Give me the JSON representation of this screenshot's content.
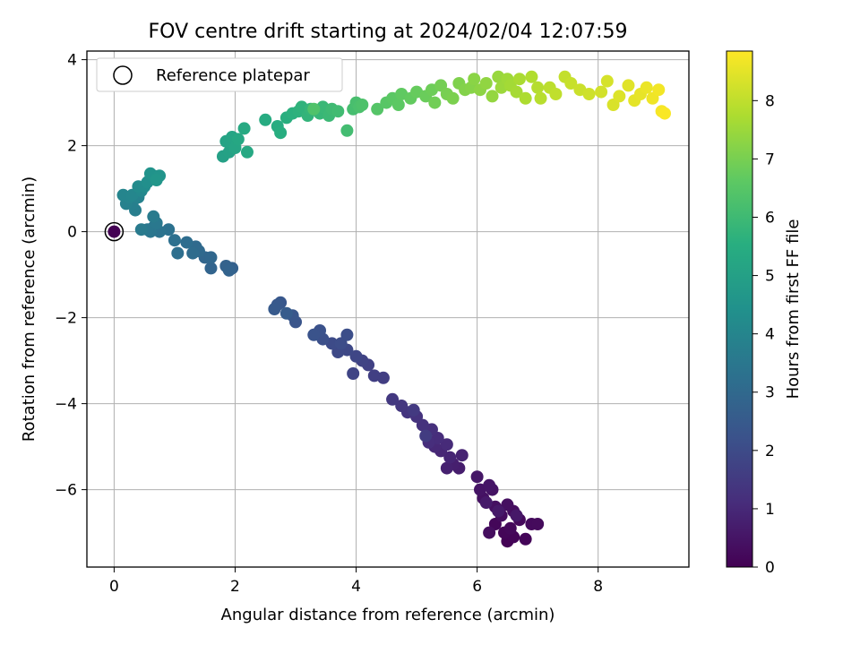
{
  "chart_data": {
    "type": "scatter",
    "title": "FOV centre drift starting at 2024/02/04 12:07:59",
    "xlabel": "Angular distance from reference (arcmin)",
    "ylabel": "Rotation from reference (arcmin)",
    "xlim": [
      -0.45,
      9.5
    ],
    "ylim": [
      -7.8,
      4.2
    ],
    "xticks": [
      0,
      2,
      4,
      6,
      8
    ],
    "xtick_labels": [
      "0",
      "2",
      "4",
      "6",
      "8"
    ],
    "yticks": [
      -6,
      -4,
      -2,
      0,
      2,
      4
    ],
    "ytick_labels": [
      "−6",
      "−4",
      "−2",
      "0",
      "2",
      "4"
    ],
    "grid": true,
    "legend": {
      "position": "top-left",
      "entries": [
        "Reference platepar"
      ]
    },
    "reference_point": {
      "x": 0,
      "y": 0
    },
    "colorbar": {
      "label": "Hours from first FF file",
      "range": [
        0,
        8.85
      ],
      "ticks": [
        0,
        1,
        2,
        3,
        4,
        5,
        6,
        7,
        8
      ],
      "tick_labels": [
        "0",
        "1",
        "2",
        "3",
        "4",
        "5",
        "6",
        "7",
        "8"
      ],
      "colormap": "viridis"
    },
    "points": [
      {
        "x": 0,
        "y": 0,
        "h": 0
      },
      {
        "x": 6.5,
        "y": -7.2,
        "h": 0.05
      },
      {
        "x": 6.6,
        "y": -7.1,
        "h": 0.08
      },
      {
        "x": 6.8,
        "y": -7.15,
        "h": 0.1
      },
      {
        "x": 6.45,
        "y": -7.0,
        "h": 0.12
      },
      {
        "x": 6.3,
        "y": -6.8,
        "h": 0.15
      },
      {
        "x": 6.55,
        "y": -6.9,
        "h": 0.18
      },
      {
        "x": 6.7,
        "y": -6.7,
        "h": 0.2
      },
      {
        "x": 6.9,
        "y": -6.8,
        "h": 0.22
      },
      {
        "x": 7.0,
        "y": -6.8,
        "h": 0.24
      },
      {
        "x": 6.4,
        "y": -6.6,
        "h": 0.27
      },
      {
        "x": 6.6,
        "y": -6.5,
        "h": 0.3
      },
      {
        "x": 6.2,
        "y": -7.0,
        "h": 0.32
      },
      {
        "x": 6.5,
        "y": -6.35,
        "h": 0.35
      },
      {
        "x": 6.3,
        "y": -6.4,
        "h": 0.38
      },
      {
        "x": 6.1,
        "y": -6.2,
        "h": 0.4
      },
      {
        "x": 6.25,
        "y": -6.0,
        "h": 0.45
      },
      {
        "x": 6.05,
        "y": -6.0,
        "h": 0.48
      },
      {
        "x": 6.2,
        "y": -5.9,
        "h": 0.5
      },
      {
        "x": 6.0,
        "y": -5.7,
        "h": 0.55
      },
      {
        "x": 6.65,
        "y": -6.6,
        "h": 0.58
      },
      {
        "x": 6.35,
        "y": -6.5,
        "h": 0.6
      },
      {
        "x": 6.15,
        "y": -6.3,
        "h": 0.62
      },
      {
        "x": 5.7,
        "y": -5.5,
        "h": 0.7
      },
      {
        "x": 5.6,
        "y": -5.4,
        "h": 0.75
      },
      {
        "x": 5.5,
        "y": -5.5,
        "h": 0.8
      },
      {
        "x": 5.75,
        "y": -5.2,
        "h": 0.85
      },
      {
        "x": 5.55,
        "y": -5.25,
        "h": 0.9
      },
      {
        "x": 5.4,
        "y": -5.1,
        "h": 0.95
      },
      {
        "x": 5.3,
        "y": -5.0,
        "h": 1.0
      },
      {
        "x": 5.5,
        "y": -4.95,
        "h": 1.05
      },
      {
        "x": 5.35,
        "y": -4.8,
        "h": 1.1
      },
      {
        "x": 5.2,
        "y": -4.9,
        "h": 1.15
      },
      {
        "x": 5.25,
        "y": -4.6,
        "h": 1.2
      },
      {
        "x": 5.1,
        "y": -4.5,
        "h": 1.25
      },
      {
        "x": 5.0,
        "y": -4.3,
        "h": 1.3
      },
      {
        "x": 4.85,
        "y": -4.2,
        "h": 1.35
      },
      {
        "x": 4.75,
        "y": -4.05,
        "h": 1.4
      },
      {
        "x": 4.6,
        "y": -3.9,
        "h": 1.45
      },
      {
        "x": 4.95,
        "y": -4.15,
        "h": 1.5
      },
      {
        "x": 5.15,
        "y": -4.75,
        "h": 1.55
      },
      {
        "x": 4.45,
        "y": -3.4,
        "h": 1.6
      },
      {
        "x": 4.3,
        "y": -3.35,
        "h": 1.65
      },
      {
        "x": 4.2,
        "y": -3.1,
        "h": 1.7
      },
      {
        "x": 4.1,
        "y": -3.0,
        "h": 1.75
      },
      {
        "x": 3.95,
        "y": -3.3,
        "h": 1.8
      },
      {
        "x": 4.0,
        "y": -2.9,
        "h": 1.85
      },
      {
        "x": 3.85,
        "y": -2.75,
        "h": 1.9
      },
      {
        "x": 3.7,
        "y": -2.8,
        "h": 1.95
      },
      {
        "x": 3.6,
        "y": -2.6,
        "h": 2.0
      },
      {
        "x": 3.75,
        "y": -2.6,
        "h": 2.05
      },
      {
        "x": 3.85,
        "y": -2.4,
        "h": 2.1
      },
      {
        "x": 3.45,
        "y": -2.5,
        "h": 2.15
      },
      {
        "x": 3.4,
        "y": -2.3,
        "h": 2.2
      },
      {
        "x": 3.3,
        "y": -2.4,
        "h": 2.25
      },
      {
        "x": 3.0,
        "y": -2.1,
        "h": 2.3
      },
      {
        "x": 2.95,
        "y": -1.95,
        "h": 2.35
      },
      {
        "x": 2.75,
        "y": -1.65,
        "h": 2.4
      },
      {
        "x": 2.7,
        "y": -1.7,
        "h": 2.45
      },
      {
        "x": 2.65,
        "y": -1.8,
        "h": 2.5
      },
      {
        "x": 2.85,
        "y": -1.9,
        "h": 2.55
      },
      {
        "x": 1.95,
        "y": -0.85,
        "h": 2.7
      },
      {
        "x": 1.85,
        "y": -0.8,
        "h": 2.75
      },
      {
        "x": 1.9,
        "y": -0.9,
        "h": 2.8
      },
      {
        "x": 1.6,
        "y": -0.85,
        "h": 2.85
      },
      {
        "x": 1.5,
        "y": -0.6,
        "h": 2.9
      },
      {
        "x": 1.6,
        "y": -0.6,
        "h": 2.95
      },
      {
        "x": 1.4,
        "y": -0.45,
        "h": 3.0
      },
      {
        "x": 1.35,
        "y": -0.35,
        "h": 3.05
      },
      {
        "x": 1.3,
        "y": -0.5,
        "h": 3.1
      },
      {
        "x": 1.2,
        "y": -0.25,
        "h": 3.15
      },
      {
        "x": 1.05,
        "y": -0.5,
        "h": 3.2
      },
      {
        "x": 1.0,
        "y": -0.2,
        "h": 3.25
      },
      {
        "x": 0.9,
        "y": 0.05,
        "h": 3.3
      },
      {
        "x": 0.75,
        "y": 0.0,
        "h": 3.35
      },
      {
        "x": 0.65,
        "y": 0.1,
        "h": 3.4
      },
      {
        "x": 0.6,
        "y": 0.0,
        "h": 3.45
      },
      {
        "x": 0.55,
        "y": 0.05,
        "h": 3.5
      },
      {
        "x": 0.7,
        "y": 0.2,
        "h": 3.55
      },
      {
        "x": 0.45,
        "y": 0.05,
        "h": 3.6
      },
      {
        "x": 0.65,
        "y": 0.35,
        "h": 3.65
      },
      {
        "x": 0.35,
        "y": 0.5,
        "h": 3.75
      },
      {
        "x": 0.3,
        "y": 0.65,
        "h": 3.8
      },
      {
        "x": 0.2,
        "y": 0.65,
        "h": 3.85
      },
      {
        "x": 0.4,
        "y": 0.8,
        "h": 3.9
      },
      {
        "x": 0.25,
        "y": 0.8,
        "h": 3.95
      },
      {
        "x": 0.15,
        "y": 0.85,
        "h": 4.0
      },
      {
        "x": 0.3,
        "y": 0.85,
        "h": 4.05
      },
      {
        "x": 0.45,
        "y": 0.95,
        "h": 4.1
      },
      {
        "x": 0.4,
        "y": 1.05,
        "h": 4.2
      },
      {
        "x": 0.5,
        "y": 1.05,
        "h": 4.25
      },
      {
        "x": 0.55,
        "y": 1.15,
        "h": 4.35
      },
      {
        "x": 0.65,
        "y": 1.3,
        "h": 4.45
      },
      {
        "x": 0.6,
        "y": 1.35,
        "h": 4.5
      },
      {
        "x": 0.75,
        "y": 1.3,
        "h": 4.55
      },
      {
        "x": 0.7,
        "y": 1.2,
        "h": 4.6
      },
      {
        "x": 1.8,
        "y": 1.75,
        "h": 5.0
      },
      {
        "x": 1.9,
        "y": 1.85,
        "h": 5.05
      },
      {
        "x": 1.85,
        "y": 2.1,
        "h": 5.1
      },
      {
        "x": 1.95,
        "y": 2.2,
        "h": 5.15
      },
      {
        "x": 2.0,
        "y": 1.95,
        "h": 5.2
      },
      {
        "x": 2.05,
        "y": 2.15,
        "h": 5.25
      },
      {
        "x": 2.2,
        "y": 1.85,
        "h": 5.3
      },
      {
        "x": 2.15,
        "y": 2.4,
        "h": 5.35
      },
      {
        "x": 2.5,
        "y": 2.6,
        "h": 5.4
      },
      {
        "x": 2.7,
        "y": 2.45,
        "h": 5.45
      },
      {
        "x": 2.75,
        "y": 2.3,
        "h": 5.5
      },
      {
        "x": 2.85,
        "y": 2.65,
        "h": 5.55
      },
      {
        "x": 2.95,
        "y": 2.75,
        "h": 5.6
      },
      {
        "x": 3.05,
        "y": 2.8,
        "h": 5.65
      },
      {
        "x": 3.1,
        "y": 2.9,
        "h": 5.7
      },
      {
        "x": 3.2,
        "y": 2.7,
        "h": 5.75
      },
      {
        "x": 3.25,
        "y": 2.85,
        "h": 5.8
      },
      {
        "x": 3.4,
        "y": 2.75,
        "h": 5.85
      },
      {
        "x": 3.45,
        "y": 2.9,
        "h": 5.9
      },
      {
        "x": 3.55,
        "y": 2.7,
        "h": 5.95
      },
      {
        "x": 3.6,
        "y": 2.85,
        "h": 6.0
      },
      {
        "x": 3.7,
        "y": 2.8,
        "h": 6.05
      },
      {
        "x": 3.85,
        "y": 2.35,
        "h": 6.1
      },
      {
        "x": 3.95,
        "y": 2.85,
        "h": 6.15
      },
      {
        "x": 4.0,
        "y": 3.0,
        "h": 6.2
      },
      {
        "x": 4.05,
        "y": 2.9,
        "h": 6.25
      },
      {
        "x": 4.1,
        "y": 2.95,
        "h": 6.3
      },
      {
        "x": 3.3,
        "y": 2.85,
        "h": 6.35
      },
      {
        "x": 4.35,
        "y": 2.85,
        "h": 6.45
      },
      {
        "x": 4.5,
        "y": 3.0,
        "h": 6.5
      },
      {
        "x": 4.6,
        "y": 3.1,
        "h": 6.55
      },
      {
        "x": 4.7,
        "y": 2.95,
        "h": 6.6
      },
      {
        "x": 4.75,
        "y": 3.2,
        "h": 6.65
      },
      {
        "x": 4.9,
        "y": 3.1,
        "h": 6.7
      },
      {
        "x": 5.0,
        "y": 3.25,
        "h": 6.75
      },
      {
        "x": 5.15,
        "y": 3.15,
        "h": 6.8
      },
      {
        "x": 5.25,
        "y": 3.3,
        "h": 6.85
      },
      {
        "x": 5.3,
        "y": 3.0,
        "h": 6.9
      },
      {
        "x": 5.4,
        "y": 3.4,
        "h": 6.95
      },
      {
        "x": 5.5,
        "y": 3.2,
        "h": 7.0
      },
      {
        "x": 5.6,
        "y": 3.1,
        "h": 7.05
      },
      {
        "x": 5.7,
        "y": 3.45,
        "h": 7.1
      },
      {
        "x": 5.8,
        "y": 3.3,
        "h": 7.15
      },
      {
        "x": 5.9,
        "y": 3.35,
        "h": 7.2
      },
      {
        "x": 5.95,
        "y": 3.55,
        "h": 7.25
      },
      {
        "x": 6.05,
        "y": 3.3,
        "h": 7.3
      },
      {
        "x": 6.15,
        "y": 3.45,
        "h": 7.35
      },
      {
        "x": 6.25,
        "y": 3.15,
        "h": 7.4
      },
      {
        "x": 6.35,
        "y": 3.6,
        "h": 7.45
      },
      {
        "x": 6.4,
        "y": 3.35,
        "h": 7.5
      },
      {
        "x": 6.5,
        "y": 3.55,
        "h": 7.55
      },
      {
        "x": 6.55,
        "y": 3.4,
        "h": 7.6
      },
      {
        "x": 6.65,
        "y": 3.25,
        "h": 7.65
      },
      {
        "x": 6.7,
        "y": 3.55,
        "h": 7.7
      },
      {
        "x": 6.8,
        "y": 3.1,
        "h": 7.75
      },
      {
        "x": 6.9,
        "y": 3.6,
        "h": 7.8
      },
      {
        "x": 7.0,
        "y": 3.35,
        "h": 7.85
      },
      {
        "x": 7.05,
        "y": 3.1,
        "h": 7.9
      },
      {
        "x": 7.2,
        "y": 3.35,
        "h": 7.95
      },
      {
        "x": 7.3,
        "y": 3.2,
        "h": 8.0
      },
      {
        "x": 7.45,
        "y": 3.6,
        "h": 8.05
      },
      {
        "x": 7.55,
        "y": 3.45,
        "h": 8.1
      },
      {
        "x": 7.7,
        "y": 3.3,
        "h": 8.15
      },
      {
        "x": 7.85,
        "y": 3.2,
        "h": 8.2
      },
      {
        "x": 8.05,
        "y": 3.25,
        "h": 8.25
      },
      {
        "x": 8.15,
        "y": 3.5,
        "h": 8.3
      },
      {
        "x": 8.25,
        "y": 2.95,
        "h": 8.35
      },
      {
        "x": 8.35,
        "y": 3.15,
        "h": 8.4
      },
      {
        "x": 8.5,
        "y": 3.4,
        "h": 8.45
      },
      {
        "x": 8.6,
        "y": 3.05,
        "h": 8.5
      },
      {
        "x": 8.7,
        "y": 3.2,
        "h": 8.55
      },
      {
        "x": 8.8,
        "y": 3.35,
        "h": 8.6
      },
      {
        "x": 8.9,
        "y": 3.1,
        "h": 8.65
      },
      {
        "x": 9.0,
        "y": 3.3,
        "h": 8.7
      },
      {
        "x": 9.05,
        "y": 2.8,
        "h": 8.75
      },
      {
        "x": 9.1,
        "y": 2.75,
        "h": 8.8
      }
    ]
  }
}
